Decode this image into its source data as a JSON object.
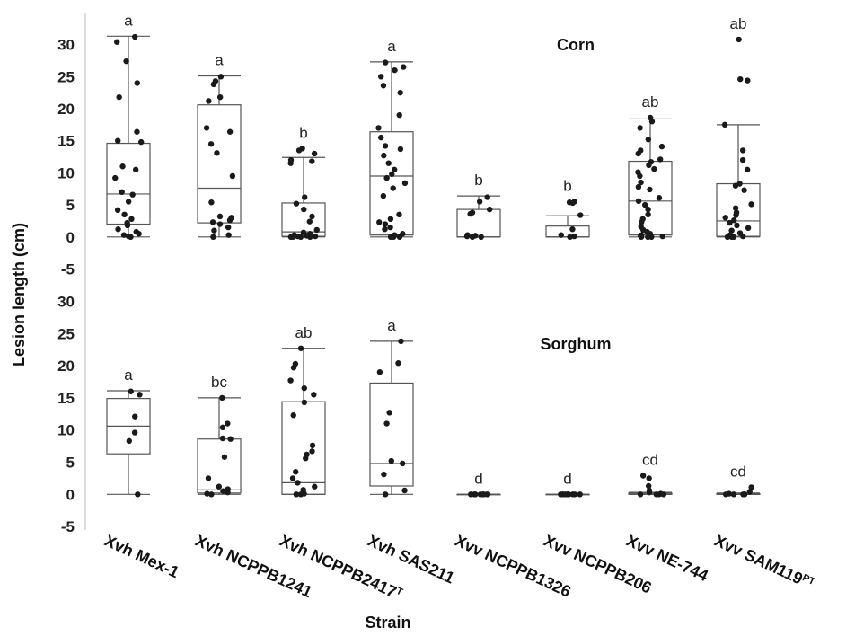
{
  "chart_data": {
    "type": "box",
    "ylabel": "Lesion length (cm)",
    "xlabel": "Strain",
    "categories": [
      {
        "name": "Xvh Mex-1",
        "sup": ""
      },
      {
        "name": "Xvh NCPPB1241",
        "sup": ""
      },
      {
        "name": "Xvh NCPPB2417",
        "sup": "T"
      },
      {
        "name": "Xvh SAS211",
        "sup": ""
      },
      {
        "name": "Xvv NCPPB1326",
        "sup": ""
      },
      {
        "name": "Xvv NCPPB206",
        "sup": ""
      },
      {
        "name": "Xvv NE-744",
        "sup": ""
      },
      {
        "name": "Xvv SAM119",
        "sup": "PT"
      }
    ],
    "ylim": [
      -5,
      32
    ],
    "yticks": [
      -5,
      0,
      5,
      10,
      15,
      20,
      25,
      30
    ],
    "panels": [
      {
        "title": "Corn",
        "boxes": [
          {
            "q1": 2,
            "median": 6.7,
            "q3": 14.6,
            "wlow": 0,
            "whigh": 31.3,
            "letter": "a",
            "points": [
              31.2,
              30.4,
              27.4,
              24,
              21.8,
              16.4,
              15,
              14.8,
              11,
              10.5,
              9.2,
              7,
              6.6,
              5.5,
              4.2,
              3.5,
              2.8,
              2.2,
              1.8,
              1.2,
              0.8,
              0.5,
              0.3,
              0.1,
              0
            ]
          },
          {
            "q1": 2.2,
            "median": 7.6,
            "q3": 20.6,
            "wlow": 0,
            "whigh": 25.1,
            "letter": "a",
            "points": [
              25,
              24.3,
              23.8,
              21.8,
              21.2,
              17,
              16.4,
              14.5,
              13.1,
              9.5,
              5.4,
              3.2,
              3,
              2.6,
              2.3,
              2,
              1.5,
              1,
              0.3,
              0
            ]
          },
          {
            "q1": 0.1,
            "median": 0.8,
            "q3": 5.3,
            "wlow": 0,
            "whigh": 12.4,
            "letter": "b",
            "points": [
              13.8,
              13.5,
              13,
              12,
              11.8,
              11.5,
              6.2,
              5.2,
              4.3,
              3.2,
              2.4,
              1.1,
              0.7,
              0.5,
              0.3,
              0.2,
              0.1,
              0.1,
              0,
              0,
              0,
              0
            ]
          },
          {
            "q1": 0.3,
            "median": 9.5,
            "q3": 16.4,
            "wlow": 0,
            "whigh": 27.3,
            "letter": "a",
            "points": [
              27.2,
              26.5,
              26,
              25,
              23.6,
              22.5,
              19,
              17,
              15.5,
              14.2,
              13.7,
              12.7,
              11.5,
              10.5,
              9.8,
              9.2,
              8.4,
              7.6,
              6.4,
              3.5,
              2.8,
              2.3,
              2,
              1.5,
              1.2,
              0.5,
              0.3,
              0.1,
              0,
              0,
              0
            ]
          },
          {
            "q1": 0,
            "median": 0,
            "q3": 4.3,
            "wlow": 0,
            "whigh": 6.4,
            "letter": "b",
            "points": [
              6.2,
              5.5,
              4.3,
              3.8,
              3.6,
              0.3,
              0.2,
              0.1,
              0,
              0
            ]
          },
          {
            "q1": 0,
            "median": 0,
            "q3": 1.7,
            "wlow": 0,
            "whigh": 3.3,
            "letter": "b",
            "points": [
              5.5,
              5.4,
              5.3,
              3.4,
              1.2,
              0.3,
              0.1,
              0
            ]
          },
          {
            "q1": 0.3,
            "median": 5.6,
            "q3": 11.8,
            "wlow": 0,
            "whigh": 18.4,
            "letter": "ab",
            "points": [
              18.6,
              18,
              17,
              15.2,
              14.1,
              13.5,
              13,
              12.1,
              11.7,
              11.2,
              10.6,
              10.1,
              9.5,
              8.5,
              7.8,
              7.4,
              6.1,
              5.6,
              5,
              4.3,
              3.5,
              2.8,
              2.3,
              1.6,
              1.1,
              0.8,
              0.5,
              0.3,
              0.2,
              0.1,
              0,
              0,
              0
            ]
          },
          {
            "q1": 0.1,
            "median": 2.5,
            "q3": 8.3,
            "wlow": 0,
            "whigh": 17.5,
            "letter": "ab",
            "points": [
              30.8,
              24.6,
              24.4,
              17.5,
              13.5,
              12,
              10.5,
              8.3,
              8,
              7.3,
              5.1,
              4.5,
              3.8,
              3.4,
              3,
              2.6,
              2.2,
              1.8,
              1.4,
              1,
              0.6,
              0.3,
              0.1,
              0,
              0,
              0
            ]
          }
        ]
      },
      {
        "title": "Sorghum",
        "boxes": [
          {
            "q1": 6.3,
            "median": 10.6,
            "q3": 14.9,
            "wlow": 0,
            "whigh": 16.1,
            "letter": "a",
            "points": [
              16,
              15.5,
              12.1,
              9.6,
              8.3,
              0
            ]
          },
          {
            "q1": 0.2,
            "median": 0.7,
            "q3": 8.6,
            "wlow": 0,
            "whigh": 15,
            "letter": "bc",
            "points": [
              15,
              11,
              10.4,
              8.7,
              8.6,
              5.8,
              2.5,
              1.2,
              0.8,
              0.5,
              0.3,
              0.1,
              0
            ]
          },
          {
            "q1": 0,
            "median": 1.8,
            "q3": 14.4,
            "wlow": 0,
            "whigh": 22.7,
            "letter": "ab",
            "points": [
              22.7,
              20.3,
              19.7,
              17.7,
              16.5,
              15.5,
              14.3,
              12.3,
              7.6,
              6.7,
              6.2,
              5.6,
              3.5,
              2.5,
              1.8,
              1.2,
              0.7,
              0.3,
              0.1,
              0,
              0
            ]
          },
          {
            "q1": 1.3,
            "median": 4.8,
            "q3": 17.3,
            "wlow": 0,
            "whigh": 23.8,
            "letter": "a",
            "points": [
              23.8,
              20.4,
              19,
              12.7,
              11,
              5.2,
              4.8,
              3.1,
              0.6,
              0
            ]
          },
          {
            "q1": 0,
            "median": 0,
            "q3": 0,
            "wlow": 0,
            "whigh": 0,
            "letter": "d",
            "points": [
              0,
              0,
              0,
              0,
              0,
              0,
              0,
              0,
              0,
              0
            ]
          },
          {
            "q1": 0,
            "median": 0,
            "q3": 0,
            "wlow": 0,
            "whigh": 0,
            "letter": "d",
            "points": [
              0,
              0,
              0,
              0,
              0,
              0,
              0,
              0,
              0,
              0
            ]
          },
          {
            "q1": 0,
            "median": 0,
            "q3": 0.2,
            "wlow": 0,
            "whigh": 0.3,
            "letter": "cd",
            "points": [
              2.9,
              2.5,
              1.3,
              0.6,
              0.3,
              0.1,
              0,
              0,
              0,
              0
            ]
          },
          {
            "q1": 0,
            "median": 0,
            "q3": 0.1,
            "wlow": 0,
            "whigh": 0.2,
            "letter": "cd",
            "points": [
              1.1,
              0.4,
              0.1,
              0,
              0,
              0,
              0,
              0
            ]
          }
        ]
      }
    ]
  }
}
